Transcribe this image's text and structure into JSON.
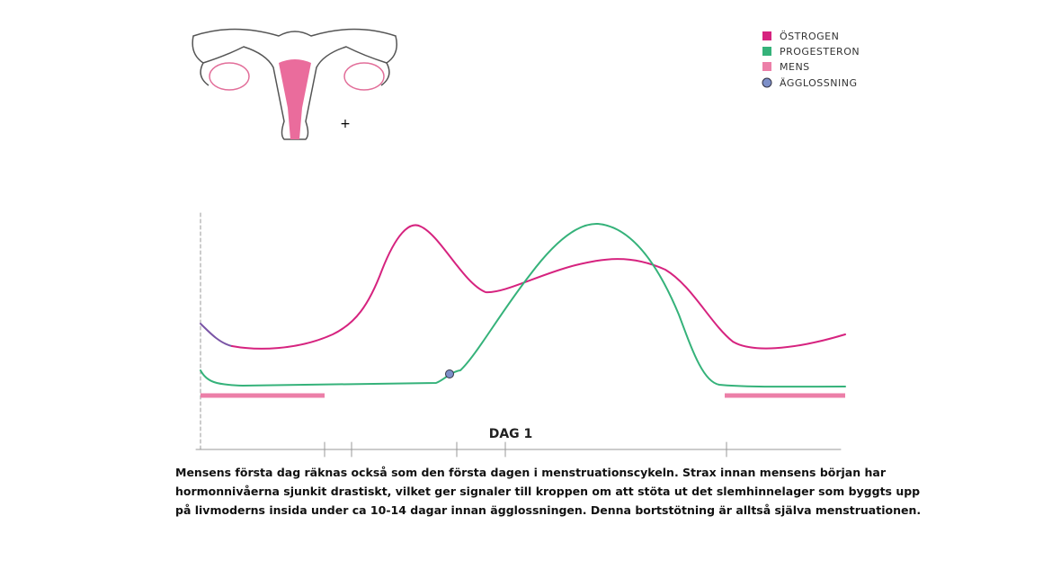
{
  "legend": {
    "items": [
      "ÖSTROGEN",
      "PROGESTERON",
      "MENS",
      "ÄGGLOSSNING"
    ]
  },
  "marker": "+",
  "axis_label": "DAG 1",
  "description": {
    "lines": [
      "Mensens första dag räknas också som den första dagen i menstruationscykeln. Strax innan mensens början har",
      "hormonnivåerna sjunkit drastiskt, vilket ger signaler till kroppen om att stöta ut det slemhinnelager som byggts upp",
      "på livmoderns insida under ca 10-14 dagar innan ägglossningen. Denna bortstötning är alltså själva menstruationen."
    ]
  }
}
